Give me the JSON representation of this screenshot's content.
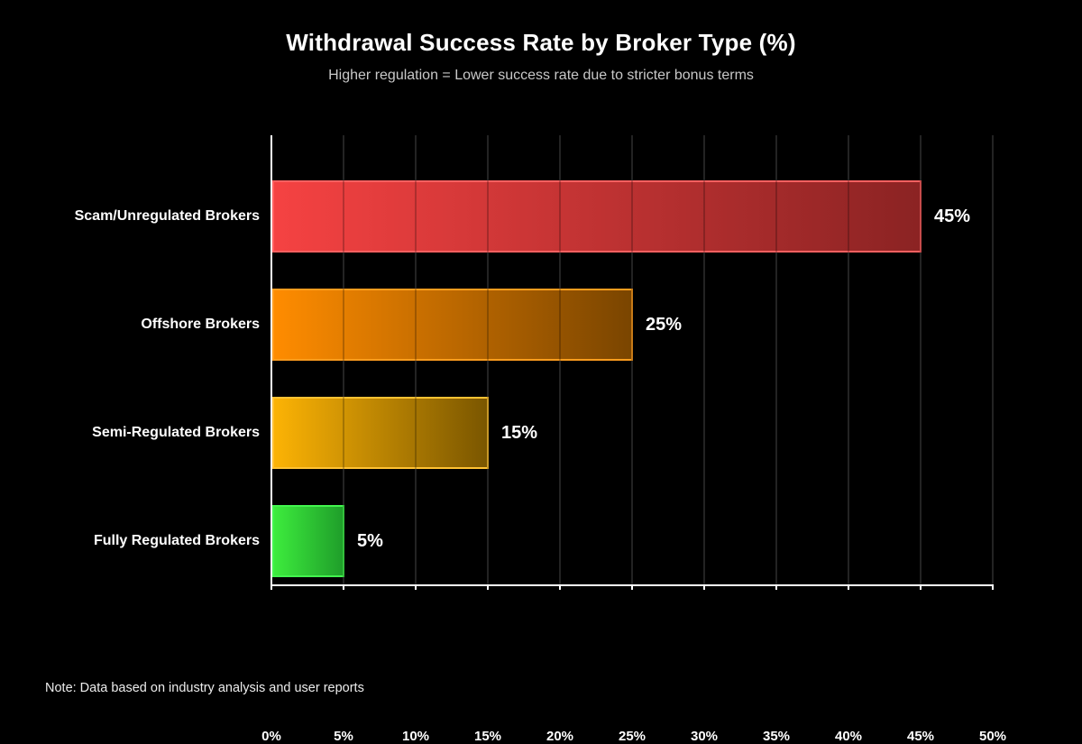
{
  "title": "Withdrawal Success Rate by Broker Type (%)",
  "subtitle": "Higher regulation = Lower success rate due to stricter bonus terms",
  "note": "Note: Data based on industry analysis and user reports",
  "colors": {
    "background": "#000000",
    "gridline": "#2e2e2e",
    "axis": "#ffffff",
    "title_text": "#ffffff",
    "subtitle_text": "#c8c8c8"
  },
  "chart_data": {
    "type": "bar",
    "orientation": "horizontal",
    "title": "Withdrawal Success Rate by Broker Type (%)",
    "subtitle": "Higher regulation = Lower success rate due to stricter bonus terms",
    "xlabel": "",
    "ylabel": "",
    "xlim": [
      0,
      50
    ],
    "grid": true,
    "x_ticks": [
      "0%",
      "5%",
      "10%",
      "15%",
      "20%",
      "25%",
      "30%",
      "35%",
      "40%",
      "45%",
      "50%"
    ],
    "categories": [
      "Scam/Unregulated Brokers",
      "Offshore Brokers",
      "Semi-Regulated Brokers",
      "Fully Regulated Brokers"
    ],
    "values": [
      45,
      25,
      15,
      5
    ],
    "value_labels": [
      "45%",
      "25%",
      "15%",
      "5%"
    ],
    "bar_colors": [
      {
        "start": "#f54242",
        "end": "#8b2323",
        "border": "#ff6060"
      },
      {
        "start": "#ff8c00",
        "end": "#7a4500",
        "border": "#ff9d1e"
      },
      {
        "start": "#fcb305",
        "end": "#7a5600",
        "border": "#ffc233"
      },
      {
        "start": "#3dec3d",
        "end": "#1f9e2a",
        "border": "#42f54e"
      }
    ],
    "annotation": "Note: Data based on industry analysis and user reports"
  }
}
